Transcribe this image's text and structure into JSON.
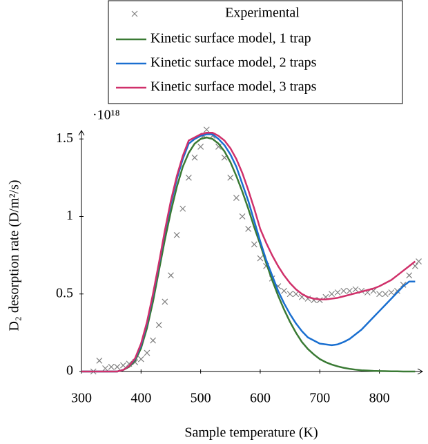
{
  "chart_data": {
    "type": "line",
    "xlabel": "Sample temperature (K)",
    "ylabel": "D₂ desorption rate (D/m²/s)",
    "y_scale_label": "·10¹⁸",
    "xlim": [
      300,
      870
    ],
    "ylim": [
      0,
      1.55
    ],
    "xticks": [
      300,
      400,
      500,
      600,
      700,
      800
    ],
    "yticks": [
      0,
      0.5,
      1,
      1.5
    ],
    "grid": false,
    "legend": "top",
    "x": [
      300,
      310,
      320,
      330,
      340,
      350,
      360,
      370,
      380,
      390,
      400,
      410,
      420,
      430,
      440,
      450,
      460,
      470,
      480,
      490,
      500,
      510,
      520,
      530,
      540,
      550,
      560,
      570,
      580,
      590,
      600,
      610,
      620,
      630,
      640,
      650,
      660,
      670,
      680,
      690,
      700,
      710,
      720,
      730,
      740,
      750,
      760,
      770,
      780,
      790,
      800,
      810,
      820,
      830,
      840,
      850,
      860
    ],
    "series": [
      {
        "name": "Experimental",
        "color": "#808080",
        "marker": "x",
        "x": [
          320,
          330,
          340,
          350,
          360,
          370,
          380,
          390,
          400,
          410,
          420,
          430,
          440,
          450,
          460,
          470,
          480,
          490,
          500,
          505,
          510,
          520,
          530,
          540,
          550,
          560,
          570,
          580,
          590,
          600,
          610,
          620,
          630,
          640,
          650,
          660,
          670,
          680,
          690,
          700,
          710,
          720,
          730,
          740,
          750,
          760,
          770,
          780,
          790,
          800,
          810,
          820,
          830,
          840,
          850,
          860,
          866
        ],
        "values": [
          0.0,
          0.07,
          0.02,
          0.03,
          0.03,
          0.04,
          0.05,
          0.06,
          0.08,
          0.12,
          0.2,
          0.3,
          0.45,
          0.62,
          0.88,
          1.05,
          1.25,
          1.38,
          1.45,
          1.52,
          1.56,
          1.52,
          1.45,
          1.38,
          1.25,
          1.12,
          1.0,
          0.92,
          0.82,
          0.73,
          0.68,
          0.6,
          0.55,
          0.52,
          0.5,
          0.5,
          0.48,
          0.47,
          0.46,
          0.46,
          0.48,
          0.5,
          0.51,
          0.52,
          0.52,
          0.53,
          0.52,
          0.51,
          0.52,
          0.5,
          0.5,
          0.51,
          0.52,
          0.56,
          0.62,
          0.68,
          0.71
        ]
      },
      {
        "name": "Kinetic surface model, 1 trap",
        "color": "#3a7a34",
        "values": [
          0,
          0,
          0,
          0,
          0,
          0,
          0,
          0.01,
          0.03,
          0.07,
          0.15,
          0.28,
          0.45,
          0.65,
          0.85,
          1.03,
          1.19,
          1.32,
          1.41,
          1.47,
          1.5,
          1.51,
          1.5,
          1.47,
          1.42,
          1.35,
          1.26,
          1.16,
          1.05,
          0.93,
          0.82,
          0.7,
          0.59,
          0.49,
          0.4,
          0.32,
          0.25,
          0.19,
          0.145,
          0.11,
          0.08,
          0.06,
          0.045,
          0.033,
          0.024,
          0.017,
          0.012,
          0.008,
          0.006,
          0.004,
          0.003,
          0.002,
          0.001,
          0.001,
          0,
          0,
          0
        ]
      },
      {
        "name": "Kinetic surface model, 2 traps",
        "color": "#1a6fd0",
        "values": [
          0,
          0,
          0,
          0,
          0,
          0,
          0,
          0.01,
          0.035,
          0.08,
          0.17,
          0.31,
          0.49,
          0.69,
          0.9,
          1.08,
          1.24,
          1.37,
          1.47,
          1.5,
          1.52,
          1.53,
          1.53,
          1.5,
          1.46,
          1.4,
          1.32,
          1.21,
          1.1,
          0.97,
          0.84,
          0.72,
          0.62,
          0.52,
          0.44,
          0.37,
          0.31,
          0.26,
          0.22,
          0.2,
          0.18,
          0.175,
          0.17,
          0.175,
          0.19,
          0.21,
          0.24,
          0.27,
          0.31,
          0.35,
          0.39,
          0.43,
          0.47,
          0.51,
          0.55,
          0.58,
          0.58
        ]
      },
      {
        "name": "Kinetic surface model, 3 traps",
        "color": "#d0306a",
        "values": [
          0,
          0,
          0,
          0,
          0,
          0,
          0,
          0.01,
          0.035,
          0.085,
          0.18,
          0.32,
          0.5,
          0.7,
          0.91,
          1.1,
          1.26,
          1.39,
          1.49,
          1.51,
          1.53,
          1.54,
          1.54,
          1.52,
          1.49,
          1.44,
          1.37,
          1.28,
          1.17,
          1.05,
          0.92,
          0.83,
          0.75,
          0.68,
          0.62,
          0.57,
          0.53,
          0.5,
          0.48,
          0.47,
          0.465,
          0.465,
          0.47,
          0.475,
          0.485,
          0.495,
          0.505,
          0.515,
          0.525,
          0.535,
          0.55,
          0.57,
          0.59,
          0.62,
          0.65,
          0.68,
          0.71
        ]
      }
    ]
  }
}
